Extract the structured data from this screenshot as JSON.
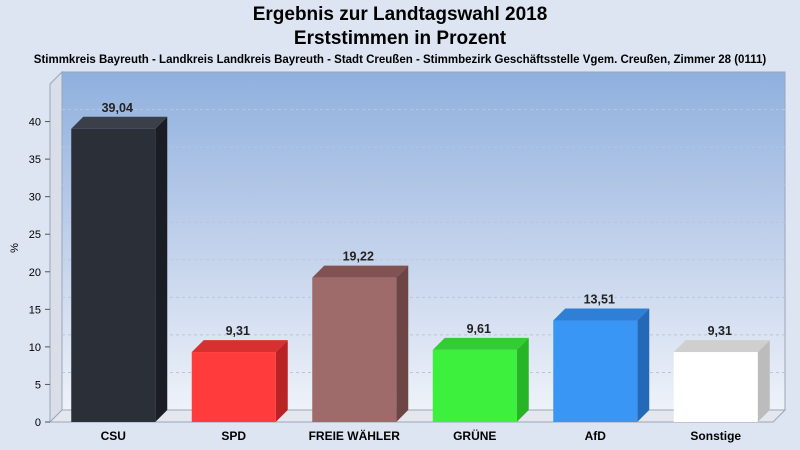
{
  "chart_data": {
    "type": "bar",
    "title": "Ergebnis zur Landtagswahl 2018",
    "title2": "Erststimmen in Prozent",
    "subtitle": "Stimmkreis Bayreuth - Landkreis Landkreis Bayreuth - Stadt Creußen - Stimmbezirk Geschäftsstelle Vgem. Creußen, Zimmer 28 (0111)",
    "ylabel": "%",
    "xlabel": "",
    "ylim": [
      0,
      45
    ],
    "yticks": [
      0,
      5,
      10,
      15,
      20,
      25,
      30,
      35,
      40
    ],
    "grid": true,
    "categories": [
      "CSU",
      "SPD",
      "FREIE WÄHLER",
      "GRÜNE",
      "AfD",
      "Sonstige"
    ],
    "values": [
      39.04,
      9.31,
      19.22,
      9.61,
      13.51,
      9.31
    ],
    "value_labels": [
      "39,04",
      "9,31",
      "19,22",
      "9,61",
      "13,51",
      "9,31"
    ],
    "colors": [
      "#2b2f38",
      "#ff3b3b",
      "#9e6a6a",
      "#3df03d",
      "#3a96f5",
      "#ffffff"
    ],
    "side_colors": [
      "#1a1d24",
      "#b92323",
      "#6e4545",
      "#27b527",
      "#2469b8",
      "#bcbcbc"
    ],
    "top_colors": [
      "#3a3f4a",
      "#d83030",
      "#825252",
      "#34cc34",
      "#2f7fd6",
      "#cfcfcf"
    ]
  }
}
